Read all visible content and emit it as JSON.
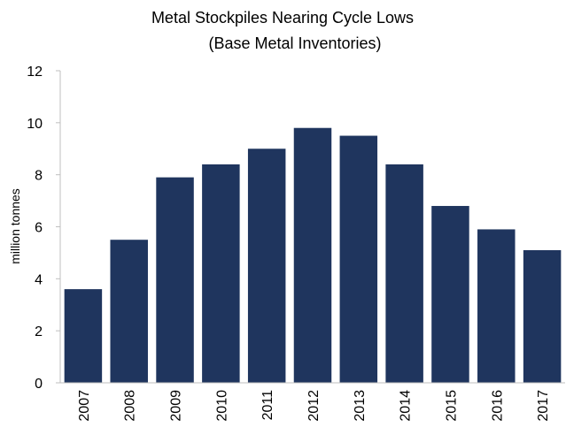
{
  "chart_data": {
    "type": "bar",
    "title": "Metal Stockpiles Nearing Cycle Lows",
    "subtitle": "(Base Metal Inventories)",
    "xlabel": "",
    "ylabel": "million tonnes",
    "categories": [
      "2007",
      "2008",
      "2009",
      "2010",
      "2011",
      "2012",
      "2013",
      "2014",
      "2015",
      "2016",
      "2017"
    ],
    "values": [
      3.6,
      5.5,
      7.9,
      8.4,
      9.0,
      9.8,
      9.5,
      8.4,
      6.8,
      5.9,
      5.1
    ],
    "ylim": [
      0,
      12
    ],
    "yticks": [
      0,
      2,
      4,
      6,
      8,
      10,
      12
    ],
    "grid": false,
    "legend": "none",
    "bar_color": "#1f355e",
    "axis_color": "#bfbfbf"
  }
}
